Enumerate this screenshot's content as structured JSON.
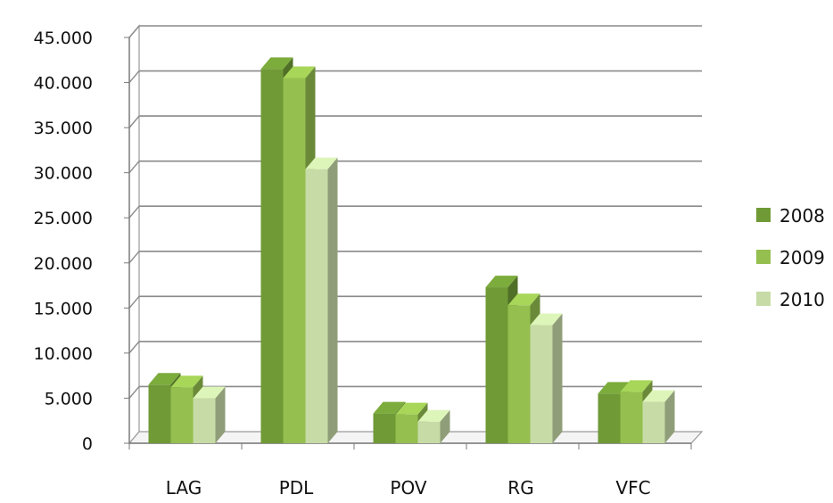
{
  "chart_data": {
    "type": "bar",
    "style": "3d-clustered-column",
    "categories": [
      "LAG",
      "PDL",
      "POV",
      "RG",
      "VFC"
    ],
    "series": [
      {
        "name": "2008",
        "values": [
          6500,
          41500,
          3300,
          17300,
          5500
        ],
        "color": "#6f9a36"
      },
      {
        "name": "2009",
        "values": [
          6200,
          40500,
          3200,
          15300,
          5700
        ],
        "color": "#95bf4f"
      },
      {
        "name": "2010",
        "values": [
          5000,
          30400,
          2400,
          13100,
          4600
        ],
        "color": "#c6dba6"
      }
    ],
    "yticks": [
      "0",
      "5.000",
      "10.000",
      "15.000",
      "20.000",
      "25.000",
      "30.000",
      "35.000",
      "40.000",
      "45.000"
    ],
    "ylim": [
      0,
      45000
    ],
    "grid": true,
    "legend": "right",
    "title": "",
    "xlabel": "",
    "ylabel": ""
  }
}
